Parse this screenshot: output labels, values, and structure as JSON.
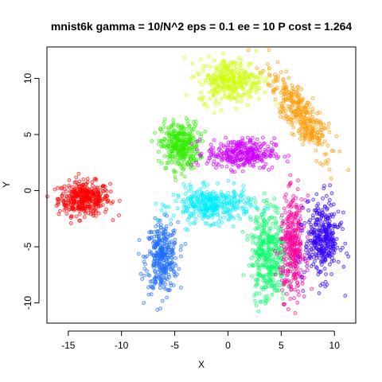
{
  "chart_data": {
    "type": "scatter",
    "title": "mnist6k gamma = 10/N^2 eps = 0.1 ee = 10 P cost = 1.264",
    "xlabel": "X",
    "ylabel": "Y",
    "xlim": [
      -17,
      12
    ],
    "ylim": [
      -11.8,
      12.8
    ],
    "x_ticks": [
      -15,
      -10,
      -5,
      0,
      5,
      10
    ],
    "y_ticks": [
      -10,
      -5,
      0,
      5,
      10
    ],
    "x_tick_labels": [
      "-15",
      "-10",
      "-5",
      "0",
      "5",
      "10"
    ],
    "y_tick_labels": [
      "-10",
      "-5",
      "0",
      "5",
      "10"
    ],
    "grid": false,
    "legend": false,
    "marker": "open circle",
    "clusters": [
      {
        "color": "#FF0000",
        "center": [
          -13.5,
          -0.7
        ],
        "spread": [
          1.6,
          1.0
        ],
        "count": 380
      },
      {
        "color": "#1F6FFF",
        "center": [
          -6.2,
          -6.0
        ],
        "spread": [
          1.0,
          2.1
        ],
        "count": 330
      },
      {
        "color": "#33EE00",
        "center": [
          -4.5,
          4.0
        ],
        "spread": [
          1.2,
          1.4
        ],
        "count": 340
      },
      {
        "color": "#00EEFF",
        "center": [
          -1.5,
          -1.3
        ],
        "spread": [
          2.4,
          1.0
        ],
        "count": 360
      },
      {
        "color": "#CC00FF",
        "center": [
          1.2,
          3.3
        ],
        "spread": [
          2.1,
          0.9
        ],
        "count": 330
      },
      {
        "color": "#CCFF00",
        "center": [
          0.3,
          9.8
        ],
        "spread": [
          2.0,
          1.3
        ],
        "count": 320
      },
      {
        "color": "#FF9900",
        "center": [
          6.7,
          6.8
        ],
        "spread": [
          1.1,
          2.6
        ],
        "count": 330,
        "tilt": -0.55
      },
      {
        "color": "#00FF66",
        "center": [
          3.8,
          -5.6
        ],
        "spread": [
          1.1,
          2.9
        ],
        "count": 360
      },
      {
        "color": "#FF0099",
        "center": [
          6.1,
          -5.0
        ],
        "spread": [
          0.8,
          2.9
        ],
        "count": 330
      },
      {
        "color": "#3300FF",
        "center": [
          8.9,
          -4.3
        ],
        "spread": [
          1.1,
          2.3
        ],
        "count": 340
      }
    ]
  }
}
